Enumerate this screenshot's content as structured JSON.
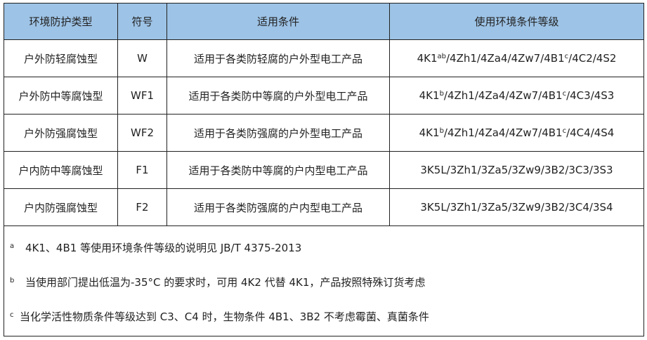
{
  "headers": [
    "环境防护类型",
    "符号",
    "适用条件",
    "使用环境条件等级"
  ],
  "rows": [
    {
      "type": "户外防轻腐蚀型",
      "symbol": "W",
      "condition": "适用于各类防轻腐的户外型电工产品",
      "grade_pre": "4K1",
      "grade_sup1": "ab",
      "grade_mid": "/4Zh1/4Za4/4Zw7/4B1",
      "grade_sup2": "c",
      "grade_post": "/4C2/4S2"
    },
    {
      "type": "户外防中等腐蚀型",
      "symbol": "WF1",
      "condition": "适用于各类防中等腐的户外型电工产品",
      "grade_pre": "4K1",
      "grade_sup1": "b",
      "grade_mid": "/4Zh1/4Za4/4Zw7/4B1",
      "grade_sup2": "c",
      "grade_post": "/4C3/4S3"
    },
    {
      "type": "户外防强腐蚀型",
      "symbol": "WF2",
      "condition": "适用于各类防强腐的户外型电工产品",
      "grade_pre": "4K1",
      "grade_sup1": "b",
      "grade_mid": "/4Zh1/4Za4/4Zw7/4B1",
      "grade_sup2": "c",
      "grade_post": "/4C4/4S4"
    },
    {
      "type": "户内防中等腐蚀型",
      "symbol": "F1",
      "condition": "适用于各类防中等腐的户内型电工产品",
      "grade_pre": "3K5L/3Zh1/3Za5/3Zw9/3B2/3C3/3S3"
    },
    {
      "type": "户内防强腐蚀型",
      "symbol": "F2",
      "condition": "适用于各类防强腐的户内型电工产品",
      "grade_pre": "3K5L/3Zh1/3Za5/3Zw9/3B2/3C4/3S4"
    }
  ],
  "footnotes": [
    {
      "mark": "a",
      "text": "4K1、4B1 等使用环境条件等级的说明见 JB/T 4375-2013"
    },
    {
      "mark": "b",
      "text": "当使用部门提出低温为-35°C 的要求时，可用 4K2 代替 4K1，产品按照特殊订货考虑"
    },
    {
      "mark": "c",
      "text": "当化学活性物质条件等级达到 C3、C4 时，生物条件 4B1、3B2 不考虑霉菌、真菌条件"
    }
  ],
  "colors": {
    "header_bg": "#9dc3e6",
    "border": "#222222"
  }
}
